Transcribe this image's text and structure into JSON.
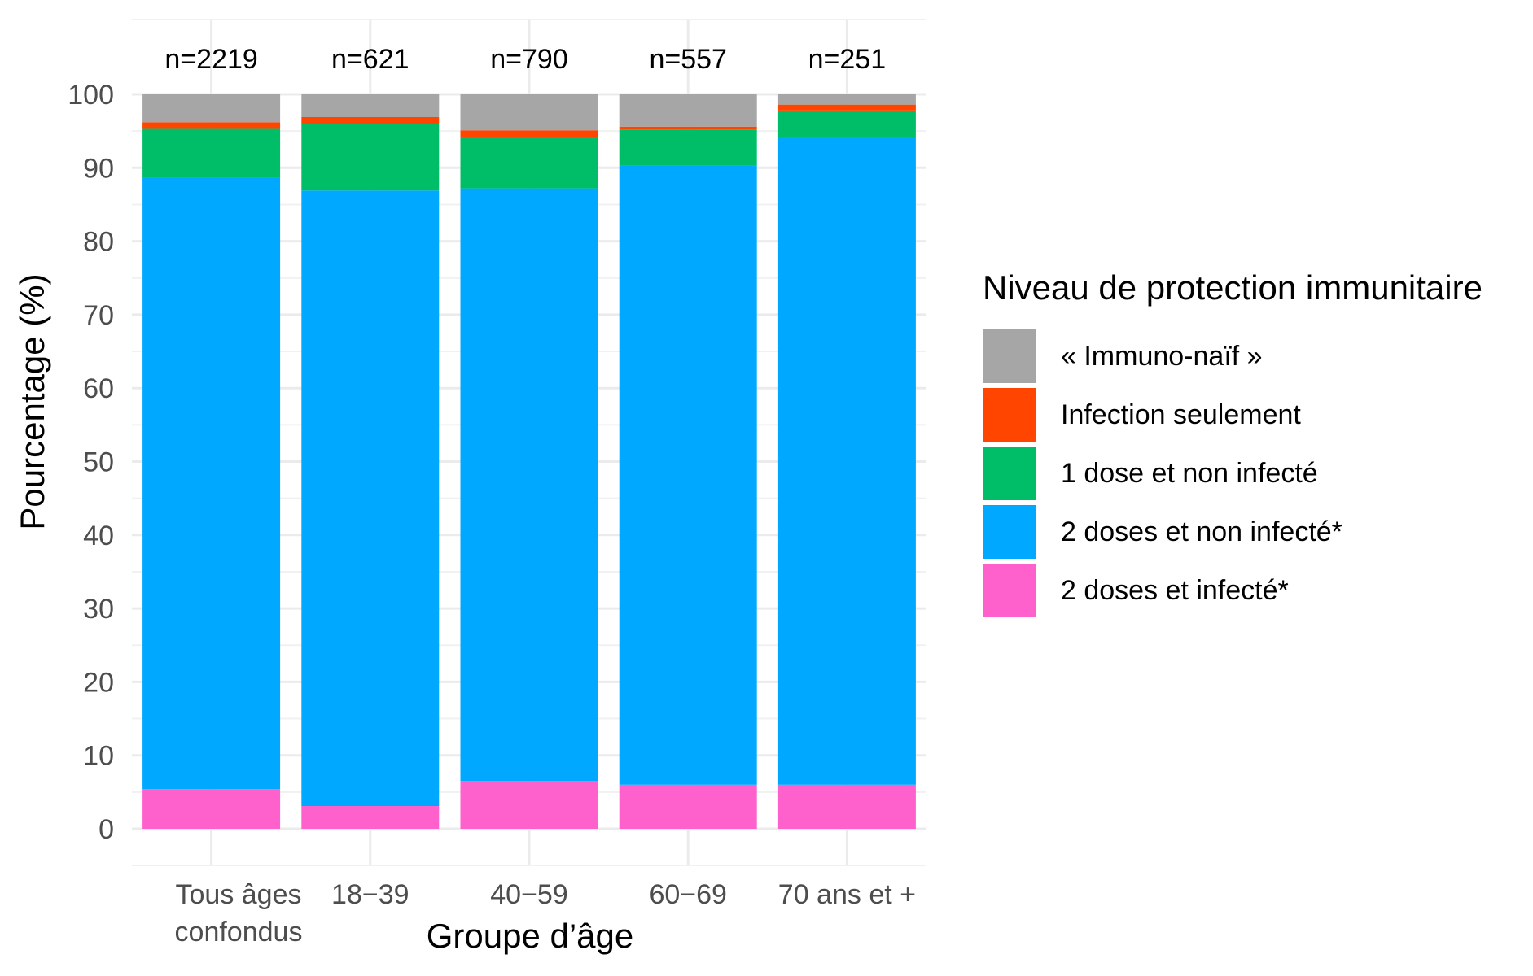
{
  "chart_data": {
    "type": "bar",
    "stacked": true,
    "categories": [
      "Tous âges confondus",
      "18−39",
      "40−59",
      "60−69",
      "70 ans et +"
    ],
    "category_lines": [
      [
        "Tous âges",
        "confondus"
      ],
      [
        "18−39"
      ],
      [
        "40−59"
      ],
      [
        "60−69"
      ],
      [
        "70 ans et +"
      ]
    ],
    "annotations": [
      "n=2219",
      "n=621",
      "n=790",
      "n=557",
      "n=251"
    ],
    "xlabel": "Groupe d’âge",
    "ylabel": "Pourcentage (%)",
    "ylim": [
      0,
      100
    ],
    "yticks": [
      0,
      10,
      20,
      30,
      40,
      50,
      60,
      70,
      80,
      90,
      100
    ],
    "grid": true,
    "legend_title": "Niveau de protection immunitaire",
    "legend_position": "right",
    "series": [
      {
        "name": "2 doses et infecté*",
        "color": "#FF61CC",
        "values": [
          5.4,
          3.1,
          6.5,
          6.0,
          6.0
        ]
      },
      {
        "name": "2 doses et non infecté*",
        "color": "#00A9FF",
        "values": [
          83.3,
          83.8,
          80.7,
          84.3,
          88.2
        ]
      },
      {
        "name": "1 dose et non infecté",
        "color": "#00BE67",
        "values": [
          6.7,
          9.1,
          7.0,
          4.9,
          3.6
        ]
      },
      {
        "name": "Infection seulement",
        "color": "#FF4500",
        "values": [
          0.8,
          0.9,
          0.9,
          0.4,
          0.8
        ]
      },
      {
        "name": "« Immuno-naïf »",
        "color": "#A6A6A6",
        "values": [
          3.8,
          3.1,
          4.9,
          4.4,
          1.4
        ]
      }
    ]
  }
}
